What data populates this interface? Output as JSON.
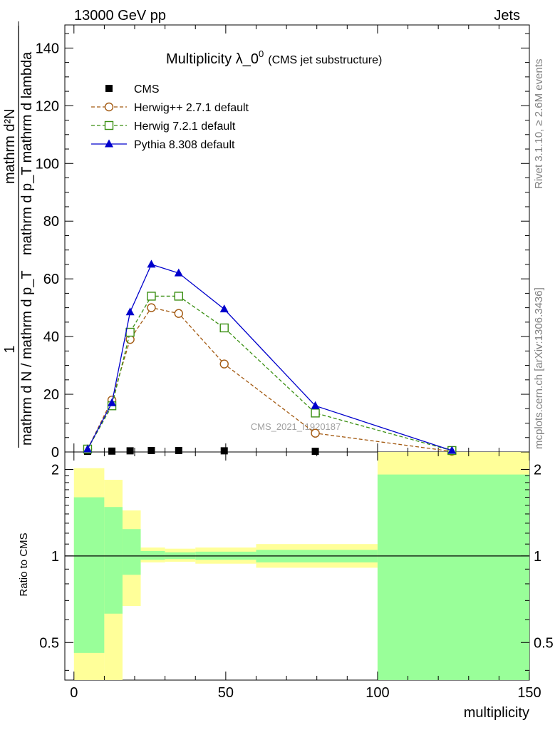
{
  "header": {
    "left": "13000 GeV pp",
    "right": "Jets"
  },
  "side": {
    "rivet": "Rivet 3.1.10, ≥ 2.6M events",
    "mcplots": "mcplots.cern.ch [arXiv:1306.3436]"
  },
  "watermark": "CMS_2021_I1920187",
  "colors": {
    "cms": "#000000",
    "herwigpp": "#a35a12",
    "herwig7": "#3a8f12",
    "pythia": "#0000cc",
    "band_inner": "#99ff99",
    "band_outer": "#ffff99"
  },
  "chart_data": [
    {
      "type": "line",
      "title": "Multiplicity λ_0",
      "title_sup": "0",
      "subtitle": "(CMS jet substructure)",
      "ylabel": {
        "numerator_top": "1",
        "denominator_left": "mathrm d N / mathrm d p_T",
        "fraction_right_num": "mathrm d²N",
        "fraction_right_den": "mathrm d p_T mathrm d lambda"
      },
      "xlim": [
        -3,
        150
      ],
      "ylim": [
        0,
        148
      ],
      "yticks": [
        0,
        20,
        40,
        60,
        80,
        100,
        120,
        140
      ],
      "legend_position": "top-left",
      "series": [
        {
          "name": "CMS",
          "marker": "square-filled",
          "style": "none",
          "x": [
            4.5,
            12.5,
            18.5,
            25.5,
            34.5,
            49.5,
            79.5,
            124.5
          ],
          "y": [
            0.2,
            0.3,
            0.4,
            0.5,
            0.5,
            0.4,
            0.2,
            0.05
          ]
        },
        {
          "name": "Herwig++ 2.7.1 default",
          "marker": "circle-open",
          "style": "dashed",
          "x": [
            4.5,
            12.5,
            18.5,
            25.5,
            34.5,
            49.5,
            79.5,
            124.5
          ],
          "y": [
            1.0,
            18.0,
            39.0,
            50.0,
            48.0,
            30.5,
            6.5,
            0.2
          ]
        },
        {
          "name": "Herwig 7.2.1 default",
          "marker": "square-open",
          "style": "dashed",
          "x": [
            4.5,
            12.5,
            18.5,
            25.5,
            34.5,
            49.5,
            79.5,
            124.5
          ],
          "y": [
            1.0,
            16.0,
            41.5,
            54.0,
            54.0,
            43.0,
            13.5,
            0.5
          ]
        },
        {
          "name": "Pythia 8.308 default",
          "marker": "triangle-filled",
          "style": "solid",
          "x": [
            4.5,
            12.5,
            18.5,
            25.5,
            34.5,
            49.5,
            79.5,
            124.5
          ],
          "y": [
            1.0,
            17.0,
            48.5,
            65.0,
            62.0,
            49.5,
            16.0,
            0.5
          ]
        }
      ]
    },
    {
      "type": "area",
      "ylabel": "Ratio to CMS",
      "xlabel": "multiplicity",
      "xlim": [
        -3,
        150
      ],
      "ylim": [
        0.37,
        2.3
      ],
      "yscale": "log",
      "yticks": [
        0.5,
        1,
        2
      ],
      "xticks": [
        0,
        50,
        100,
        150
      ],
      "reference": 1,
      "bins": [
        {
          "x0": 0,
          "x1": 10,
          "inner_lo": 0.46,
          "inner_hi": 1.6,
          "outer_lo": 0.37,
          "outer_hi": 2.02
        },
        {
          "x0": 10,
          "x1": 16,
          "inner_lo": 0.63,
          "inner_hi": 1.48,
          "outer_lo": 0.37,
          "outer_hi": 1.84
        },
        {
          "x0": 16,
          "x1": 22,
          "inner_lo": 0.86,
          "inner_hi": 1.24,
          "outer_lo": 0.67,
          "outer_hi": 1.44
        },
        {
          "x0": 22,
          "x1": 30,
          "inner_lo": 0.97,
          "inner_hi": 1.04,
          "outer_lo": 0.95,
          "outer_hi": 1.07
        },
        {
          "x0": 30,
          "x1": 40,
          "inner_lo": 0.975,
          "inner_hi": 1.03,
          "outer_lo": 0.955,
          "outer_hi": 1.06
        },
        {
          "x0": 40,
          "x1": 60,
          "inner_lo": 0.97,
          "inner_hi": 1.035,
          "outer_lo": 0.94,
          "outer_hi": 1.07
        },
        {
          "x0": 60,
          "x1": 100,
          "inner_lo": 0.95,
          "inner_hi": 1.05,
          "outer_lo": 0.91,
          "outer_hi": 1.1
        },
        {
          "x0": 100,
          "x1": 150,
          "inner_lo": 0.37,
          "inner_hi": 1.92,
          "outer_lo": 0.37,
          "outer_hi": 2.3
        }
      ]
    }
  ]
}
